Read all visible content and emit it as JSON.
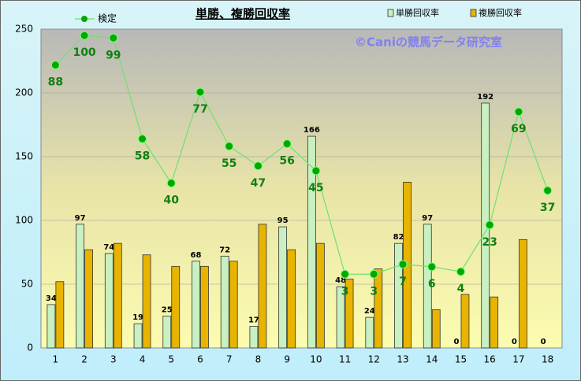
{
  "chart_data": {
    "type": "bar-line",
    "title": "単勝、複勝回収率",
    "annotation": "©Caniの競馬データ研究室",
    "categories": [
      "1",
      "2",
      "3",
      "4",
      "5",
      "6",
      "7",
      "8",
      "9",
      "10",
      "11",
      "12",
      "13",
      "14",
      "15",
      "16",
      "17",
      "18"
    ],
    "series": [
      {
        "name": "単勝回収率",
        "color": "#c8f0c0",
        "type": "bar",
        "values": [
          34,
          97,
          74,
          19,
          25,
          68,
          72,
          17,
          95,
          166,
          48,
          24,
          82,
          97,
          0,
          192,
          0,
          0
        ]
      },
      {
        "name": "複勝回収率",
        "color": "#e8b400",
        "type": "bar",
        "values": [
          52,
          77,
          82,
          73,
          64,
          64,
          68,
          97,
          77,
          82,
          54,
          62,
          130,
          30,
          42,
          40,
          85,
          0
        ]
      },
      {
        "name": "検定",
        "color": "#00a800",
        "type": "line",
        "axis": "y2",
        "values": [
          88,
          100,
          99,
          58,
          40,
          77,
          55,
          47,
          56,
          45,
          3,
          3,
          7,
          6,
          4,
          23,
          69,
          37
        ]
      }
    ],
    "ylim": [
      0,
      250
    ],
    "yticks": [
      0,
      50,
      100,
      150,
      200,
      250
    ],
    "y2lim": [
      -27,
      102.6
    ],
    "grid": true
  }
}
